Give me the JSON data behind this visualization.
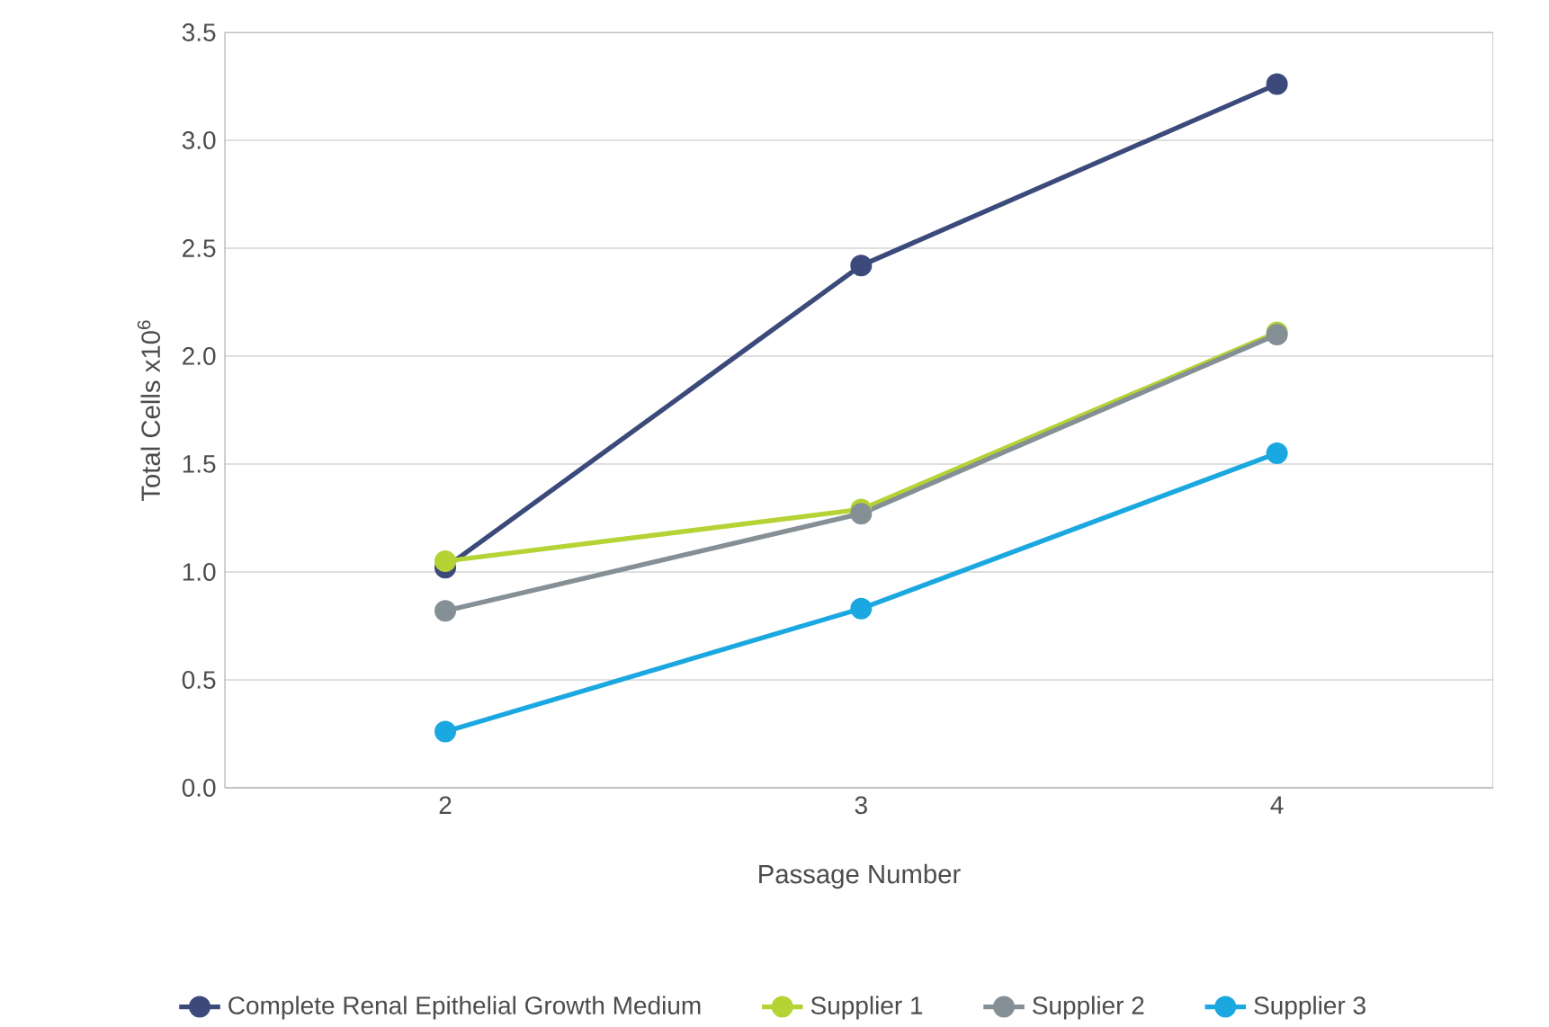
{
  "chart_data": {
    "type": "line",
    "xlabel": "Passage Number",
    "ylabel": "Total Cells x10$^{6}$",
    "x": [
      2,
      3,
      4
    ],
    "xlim": [
      1.47,
      4.52
    ],
    "xticks": [
      2,
      3,
      4
    ],
    "ylim": [
      0,
      3.5
    ],
    "yticks": [
      {
        "value": 0,
        "label": "0.0"
      },
      0.5,
      {
        "value": 1,
        "label": "1.0"
      },
      1.5,
      {
        "value": 2,
        "label": "2.0"
      },
      2.5,
      {
        "value": 3,
        "label": "3.0"
      },
      3.5
    ],
    "grid": "y",
    "legend": "bottom",
    "marker": "circle",
    "line_style": "solid",
    "series": [
      {
        "name": "Complete Renal Epithelial Growth Medium",
        "color": "#3b4a7a",
        "values": [
          1.02,
          2.42,
          3.26
        ]
      },
      {
        "name": "Supplier 1",
        "color": "#b5d334",
        "values": [
          1.05,
          1.29,
          2.11
        ]
      },
      {
        "name": "Supplier 2",
        "color": "#858f96",
        "values": [
          0.82,
          1.27,
          2.1
        ]
      },
      {
        "name": "Supplier 3",
        "color": "#1ba8e0",
        "values": [
          0.26,
          0.83,
          1.55
        ]
      }
    ]
  }
}
